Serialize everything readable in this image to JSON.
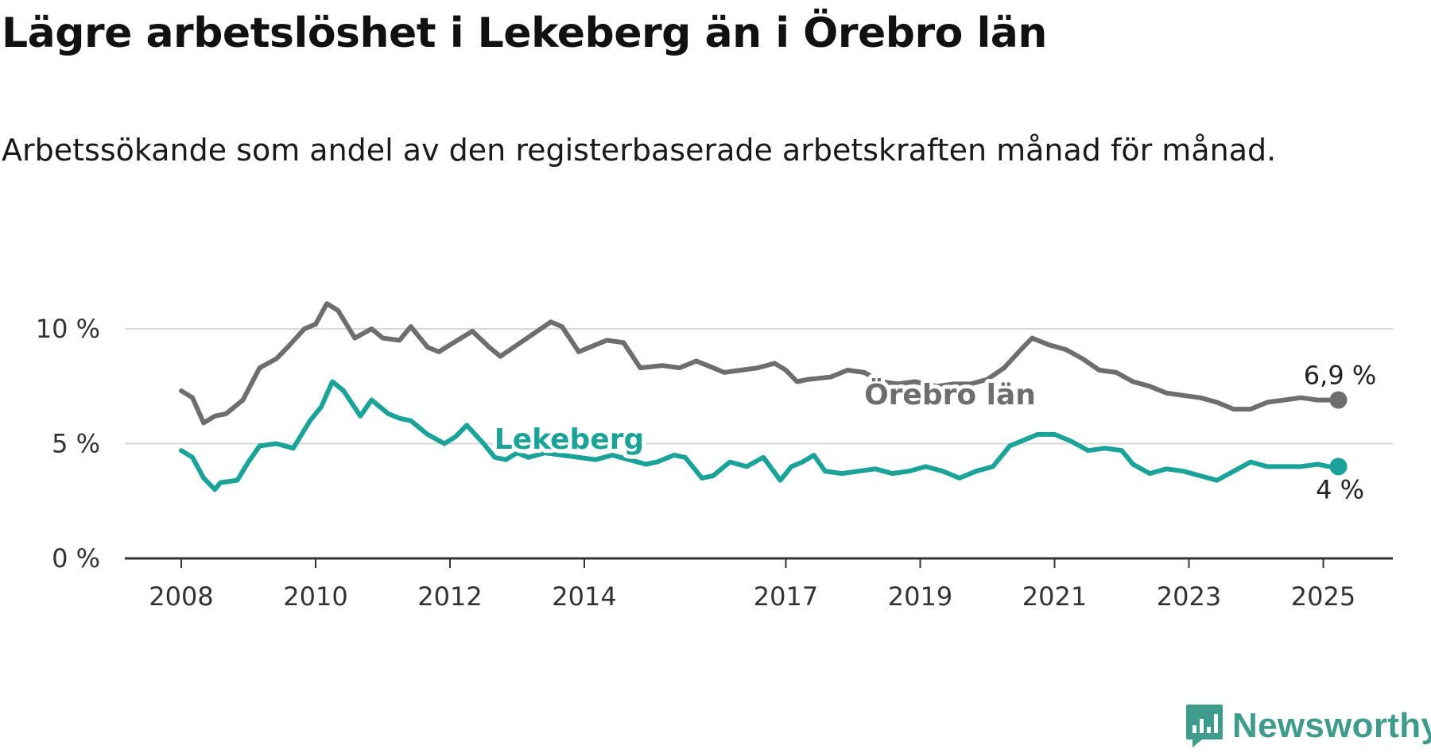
{
  "chart_data": {
    "type": "line",
    "title": "Lägre arbetslöshet i Lekeberg än i Örebro län",
    "subtitle": "Arbetssökande som andel av den registerbaserade arbetskraften månad för månad.",
    "x_ticks": [
      "2008",
      "2010",
      "2012",
      "2014",
      "2017",
      "2019",
      "2021",
      "2023",
      "2025"
    ],
    "y_ticks": [
      "0 %",
      "5 %",
      "10 %"
    ],
    "ylim": [
      0,
      12
    ],
    "grid": true,
    "series": [
      {
        "name": "Örebro län",
        "color": "#6e6e70",
        "end_label": "6,9 %",
        "points": [
          [
            "2008-01",
            7.3
          ],
          [
            "2008-03",
            7.0
          ],
          [
            "2008-05",
            5.9
          ],
          [
            "2008-07",
            6.2
          ],
          [
            "2008-09",
            6.3
          ],
          [
            "2008-12",
            6.9
          ],
          [
            "2009-03",
            8.3
          ],
          [
            "2009-06",
            8.7
          ],
          [
            "2009-08",
            9.2
          ],
          [
            "2009-11",
            10.0
          ],
          [
            "2010-01",
            10.2
          ],
          [
            "2010-03",
            11.1
          ],
          [
            "2010-05",
            10.8
          ],
          [
            "2010-08",
            9.6
          ],
          [
            "2010-11",
            10.0
          ],
          [
            "2011-01",
            9.6
          ],
          [
            "2011-04",
            9.5
          ],
          [
            "2011-06",
            10.1
          ],
          [
            "2011-09",
            9.2
          ],
          [
            "2011-11",
            9.0
          ],
          [
            "2012-01",
            9.3
          ],
          [
            "2012-05",
            9.9
          ],
          [
            "2012-08",
            9.2
          ],
          [
            "2012-10",
            8.8
          ],
          [
            "2013-01",
            9.3
          ],
          [
            "2013-04",
            9.8
          ],
          [
            "2013-07",
            10.3
          ],
          [
            "2013-09",
            10.1
          ],
          [
            "2013-12",
            9.0
          ],
          [
            "2014-03",
            9.3
          ],
          [
            "2014-05",
            9.5
          ],
          [
            "2014-08",
            9.4
          ],
          [
            "2014-11",
            8.3
          ],
          [
            "2015-03",
            8.4
          ],
          [
            "2015-06",
            8.3
          ],
          [
            "2015-09",
            8.6
          ],
          [
            "2015-11",
            8.4
          ],
          [
            "2016-02",
            8.1
          ],
          [
            "2016-05",
            8.2
          ],
          [
            "2016-08",
            8.3
          ],
          [
            "2016-11",
            8.5
          ],
          [
            "2017-01",
            8.2
          ],
          [
            "2017-03",
            7.7
          ],
          [
            "2017-05",
            7.8
          ],
          [
            "2017-09",
            7.9
          ],
          [
            "2017-12",
            8.2
          ],
          [
            "2018-03",
            8.1
          ],
          [
            "2018-06",
            7.7
          ],
          [
            "2018-09",
            7.6
          ],
          [
            "2018-12",
            7.7
          ],
          [
            "2019-04",
            7.5
          ],
          [
            "2019-07",
            7.6
          ],
          [
            "2019-10",
            7.6
          ],
          [
            "2020-01",
            7.8
          ],
          [
            "2020-04",
            8.3
          ],
          [
            "2020-07",
            9.1
          ],
          [
            "2020-09",
            9.6
          ],
          [
            "2020-12",
            9.3
          ],
          [
            "2021-03",
            9.1
          ],
          [
            "2021-06",
            8.7
          ],
          [
            "2021-09",
            8.2
          ],
          [
            "2021-12",
            8.1
          ],
          [
            "2022-03",
            7.7
          ],
          [
            "2022-06",
            7.5
          ],
          [
            "2022-09",
            7.2
          ],
          [
            "2022-12",
            7.1
          ],
          [
            "2023-03",
            7.0
          ],
          [
            "2023-06",
            6.8
          ],
          [
            "2023-09",
            6.5
          ],
          [
            "2023-12",
            6.5
          ],
          [
            "2024-03",
            6.8
          ],
          [
            "2024-06",
            6.9
          ],
          [
            "2024-09",
            7.0
          ],
          [
            "2024-12",
            6.9
          ],
          [
            "2025-02",
            6.9
          ]
        ]
      },
      {
        "name": "Lekeberg",
        "color": "#1ba299",
        "end_label": "4 %",
        "points": [
          [
            "2008-01",
            4.7
          ],
          [
            "2008-03",
            4.4
          ],
          [
            "2008-05",
            3.5
          ],
          [
            "2008-07",
            3.0
          ],
          [
            "2008-08",
            3.3
          ],
          [
            "2008-11",
            3.4
          ],
          [
            "2009-01",
            4.2
          ],
          [
            "2009-03",
            4.9
          ],
          [
            "2009-06",
            5.0
          ],
          [
            "2009-09",
            4.8
          ],
          [
            "2009-12",
            6.0
          ],
          [
            "2010-02",
            6.6
          ],
          [
            "2010-04",
            7.7
          ],
          [
            "2010-06",
            7.3
          ],
          [
            "2010-09",
            6.2
          ],
          [
            "2010-11",
            6.9
          ],
          [
            "2011-02",
            6.3
          ],
          [
            "2011-04",
            6.1
          ],
          [
            "2011-06",
            6.0
          ],
          [
            "2011-09",
            5.4
          ],
          [
            "2011-12",
            5.0
          ],
          [
            "2012-02",
            5.3
          ],
          [
            "2012-04",
            5.8
          ],
          [
            "2012-07",
            5.0
          ],
          [
            "2012-09",
            4.4
          ],
          [
            "2012-11",
            4.3
          ],
          [
            "2013-01",
            4.6
          ],
          [
            "2013-03",
            4.4
          ],
          [
            "2013-06",
            4.6
          ],
          [
            "2013-09",
            4.5
          ],
          [
            "2013-12",
            4.4
          ],
          [
            "2014-03",
            4.3
          ],
          [
            "2014-06",
            4.5
          ],
          [
            "2014-09",
            4.3
          ],
          [
            "2014-12",
            4.1
          ],
          [
            "2015-02",
            4.2
          ],
          [
            "2015-05",
            4.5
          ],
          [
            "2015-07",
            4.4
          ],
          [
            "2015-10",
            3.5
          ],
          [
            "2015-12",
            3.6
          ],
          [
            "2016-03",
            4.2
          ],
          [
            "2016-06",
            4.0
          ],
          [
            "2016-09",
            4.4
          ],
          [
            "2016-12",
            3.4
          ],
          [
            "2017-02",
            4.0
          ],
          [
            "2017-04",
            4.2
          ],
          [
            "2017-06",
            4.5
          ],
          [
            "2017-08",
            3.8
          ],
          [
            "2017-11",
            3.7
          ],
          [
            "2018-02",
            3.8
          ],
          [
            "2018-05",
            3.9
          ],
          [
            "2018-08",
            3.7
          ],
          [
            "2018-11",
            3.8
          ],
          [
            "2019-02",
            4.0
          ],
          [
            "2019-05",
            3.8
          ],
          [
            "2019-08",
            3.5
          ],
          [
            "2019-11",
            3.8
          ],
          [
            "2020-02",
            4.0
          ],
          [
            "2020-05",
            4.9
          ],
          [
            "2020-08",
            5.2
          ],
          [
            "2020-10",
            5.4
          ],
          [
            "2021-01",
            5.4
          ],
          [
            "2021-04",
            5.1
          ],
          [
            "2021-07",
            4.7
          ],
          [
            "2021-10",
            4.8
          ],
          [
            "2022-01",
            4.7
          ],
          [
            "2022-03",
            4.1
          ],
          [
            "2022-06",
            3.7
          ],
          [
            "2022-09",
            3.9
          ],
          [
            "2022-12",
            3.8
          ],
          [
            "2023-03",
            3.6
          ],
          [
            "2023-06",
            3.4
          ],
          [
            "2023-09",
            3.8
          ],
          [
            "2023-12",
            4.2
          ],
          [
            "2024-03",
            4.0
          ],
          [
            "2024-06",
            4.0
          ],
          [
            "2024-09",
            4.0
          ],
          [
            "2024-12",
            4.1
          ],
          [
            "2025-02",
            4.0
          ]
        ]
      }
    ]
  },
  "brand": {
    "name": "Newsworthy",
    "color": "#3f9c8d"
  }
}
